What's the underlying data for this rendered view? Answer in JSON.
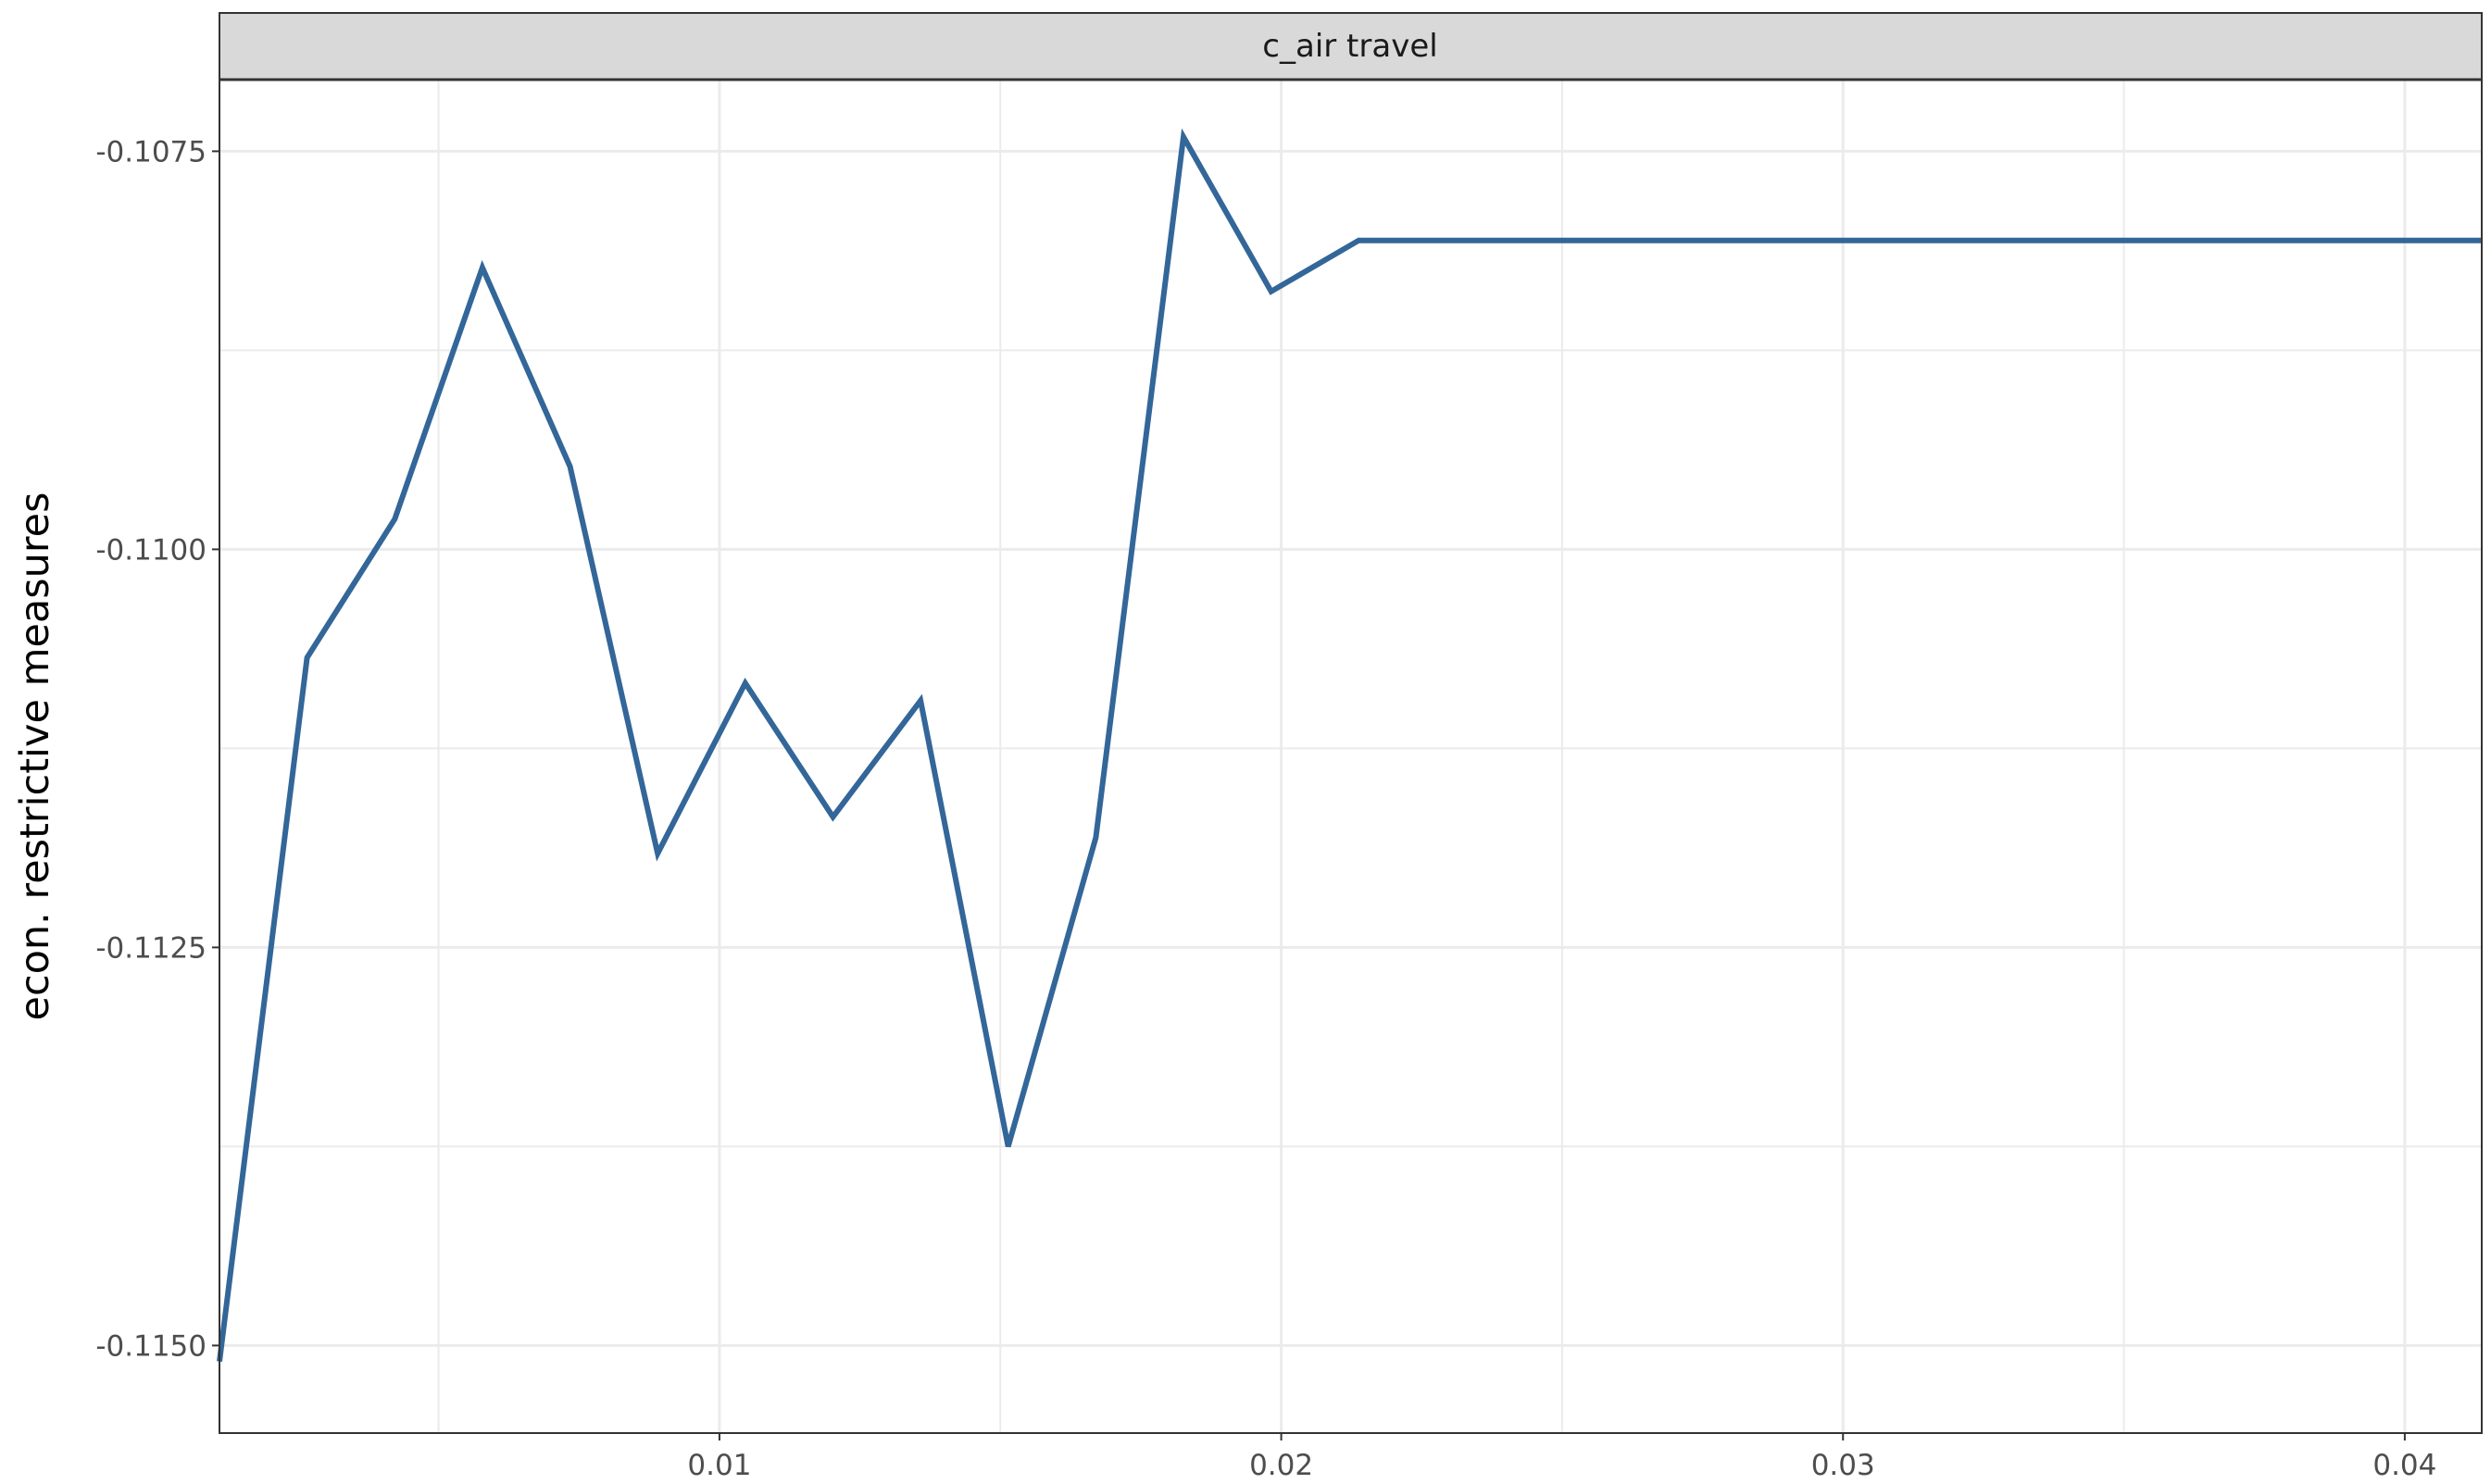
{
  "chart_data": {
    "type": "line",
    "facet_title": "c_air travel",
    "title": "",
    "xlabel": "",
    "ylabel": "econ. restrictive measures",
    "xlim": [
      0.0011,
      0.04137
    ],
    "ylim": [
      -0.11555,
      -0.10705
    ],
    "x_ticks": [
      0.01,
      0.02,
      0.03,
      0.04
    ],
    "x_tick_labels": [
      "0.01",
      "0.02",
      "0.03",
      "0.04"
    ],
    "y_ticks": [
      -0.1075,
      -0.11,
      -0.1125,
      -0.115
    ],
    "y_tick_labels": [
      "-0.1075",
      "-0.1100",
      "-0.1125",
      "-0.1150"
    ],
    "grid": true,
    "legend": "none",
    "line_color": "#336699",
    "series": [
      {
        "x": [
          0.0011,
          0.00266,
          0.00422,
          0.00578,
          0.00734,
          0.0089,
          0.01046,
          0.01202,
          0.01358,
          0.01514,
          0.0167,
          0.01826,
          0.01982,
          0.02138,
          0.04137
        ],
        "y": [
          -0.1151,
          -0.11068,
          -0.10981,
          -0.10823,
          -0.10948,
          -0.11191,
          -0.11084,
          -0.11168,
          -0.11095,
          -0.11375,
          -0.11181,
          -0.10741,
          -0.10838,
          -0.10806,
          -0.10806
        ]
      }
    ]
  }
}
